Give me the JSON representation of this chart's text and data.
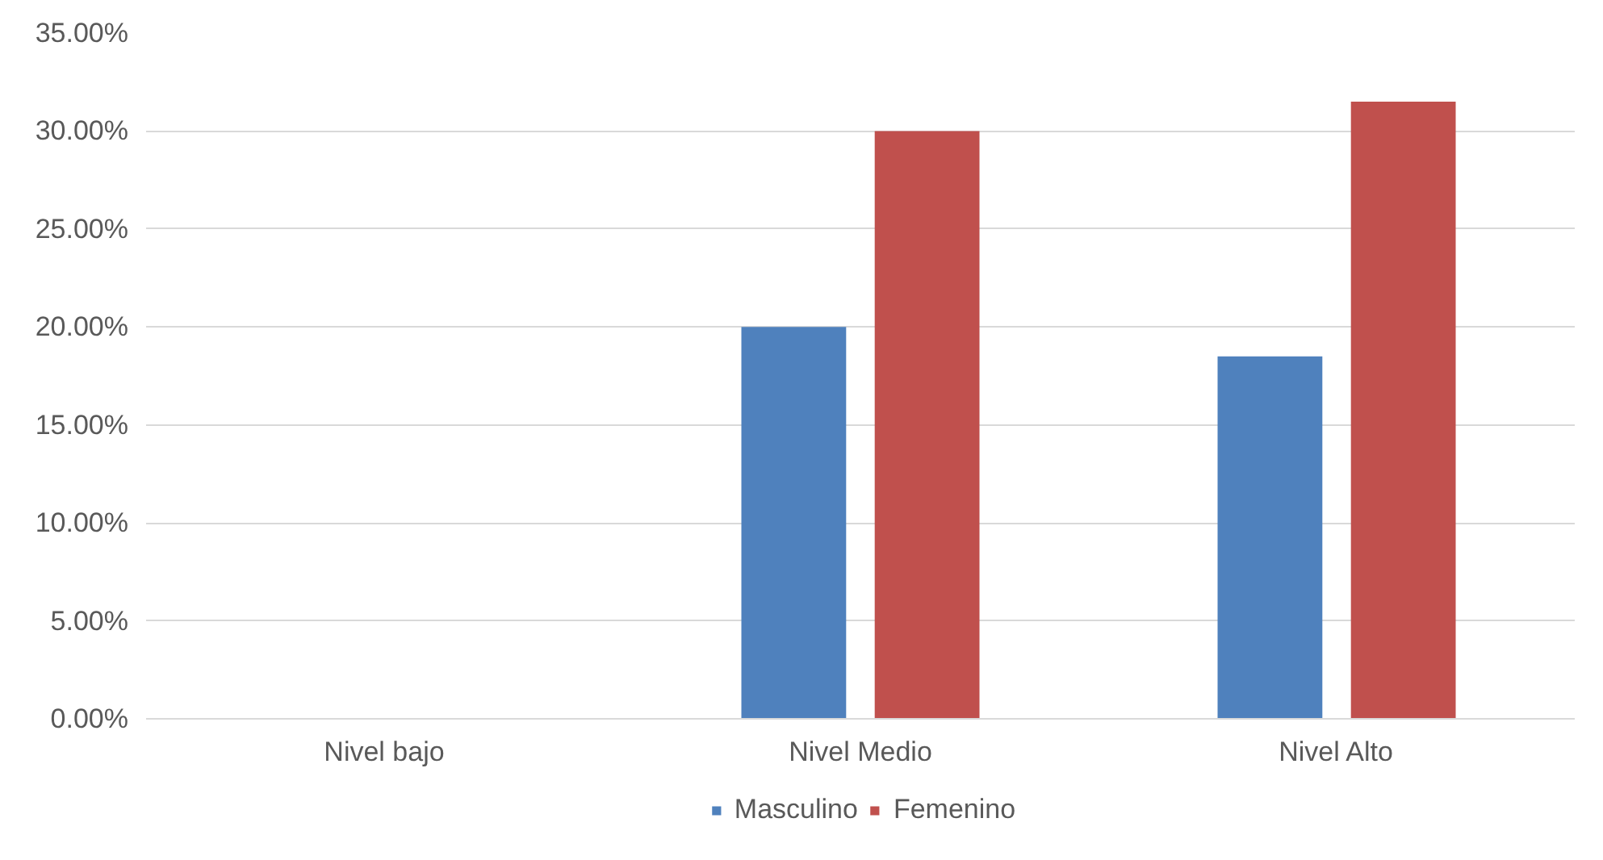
{
  "chart_data": {
    "type": "bar",
    "categories": [
      "Nivel bajo",
      "Nivel Medio",
      "Nivel Alto"
    ],
    "series": [
      {
        "name": "Masculino",
        "color": "#4f81bd",
        "values": [
          0,
          20,
          18.5
        ]
      },
      {
        "name": "Femenino",
        "color": "#c0504d",
        "values": [
          0,
          30,
          31.5
        ]
      }
    ],
    "ylim": [
      0,
      35
    ],
    "yticks": [
      {
        "value": 0,
        "label": "0.00%"
      },
      {
        "value": 5,
        "label": "5.00%"
      },
      {
        "value": 10,
        "label": "10.00%"
      },
      {
        "value": 15,
        "label": "15.00%"
      },
      {
        "value": 20,
        "label": "20.00%"
      },
      {
        "value": 25,
        "label": "25.00%"
      },
      {
        "value": 30,
        "label": "30.00%"
      },
      {
        "value": 35,
        "label": "35.00%"
      }
    ],
    "grid": "y",
    "legend": "bottom"
  }
}
